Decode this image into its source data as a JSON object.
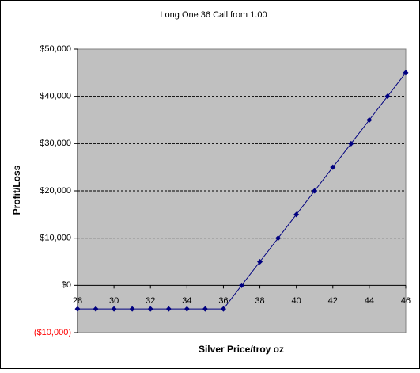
{
  "chart_data": {
    "type": "line",
    "title": "Long One 36 Call from 1.00",
    "x_label": "Silver Price/troy oz",
    "y_label": "Profit/Loss",
    "x": [
      28,
      29,
      30,
      31,
      32,
      33,
      34,
      35,
      36,
      37,
      38,
      39,
      40,
      41,
      42,
      43,
      44,
      45,
      46
    ],
    "series": [
      {
        "name": "Profit/Loss",
        "color": "#000080",
        "values": [
          -5000,
          -5000,
          -5000,
          -5000,
          -5000,
          -5000,
          -5000,
          -5000,
          -5000,
          0,
          5000,
          10000,
          15000,
          20000,
          25000,
          30000,
          35000,
          40000,
          45000
        ]
      }
    ],
    "xlim": [
      28,
      46
    ],
    "xticks": [
      28,
      30,
      32,
      34,
      36,
      38,
      40,
      42,
      44,
      46
    ],
    "ylim": [
      -10000,
      50000
    ],
    "yticks": [
      {
        "value": -10000,
        "label": "($10,000)"
      },
      {
        "value": 0,
        "label": "$0"
      },
      {
        "value": 10000,
        "label": "$10,000"
      },
      {
        "value": 20000,
        "label": "$20,000"
      },
      {
        "value": 30000,
        "label": "$30,000"
      },
      {
        "value": 40000,
        "label": "$40,000"
      },
      {
        "value": 50000,
        "label": "$50,000"
      }
    ],
    "negative_tick_color": "#ff0000",
    "grid": true,
    "plot_background": "#c0c0c0"
  }
}
